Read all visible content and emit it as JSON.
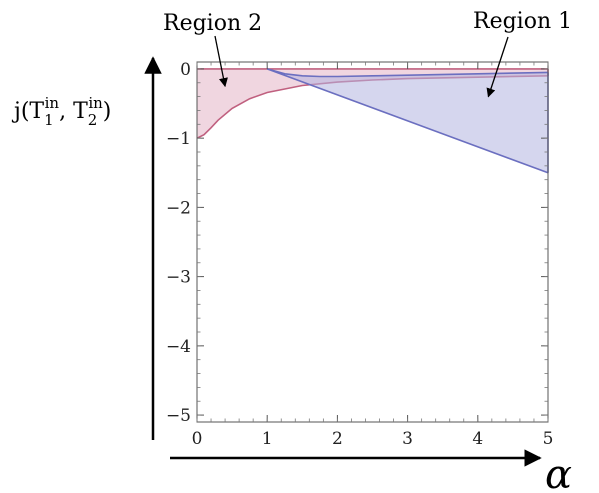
{
  "chart_data": {
    "type": "area",
    "xlabel": "α",
    "ylabel": {
      "prefix": "j(T",
      "sub1": "1",
      "sup": "in",
      "mid": ", T",
      "sub2": "2",
      "suffix": ")"
    },
    "xlim": [
      0,
      5
    ],
    "ylim": [
      -5.1,
      0.1
    ],
    "xticks": [
      "0",
      "1",
      "2",
      "3",
      "4",
      "5"
    ],
    "yticks": [
      "0",
      "−1",
      "−2",
      "−3",
      "−4",
      "−5"
    ],
    "grid": false,
    "series": [
      {
        "name": "Region 2",
        "color": "#c0607f",
        "fill": "#e4b4c6",
        "upper": {
          "x": [
            0,
            5
          ],
          "y": [
            0,
            0
          ]
        },
        "lower": {
          "x": [
            0,
            0.1,
            0.2,
            0.3,
            0.5,
            0.75,
            1,
            1.5,
            2,
            2.5,
            3,
            4,
            5
          ],
          "y": [
            -1.0,
            -0.95,
            -0.85,
            -0.74,
            -0.57,
            -0.43,
            -0.34,
            -0.24,
            -0.19,
            -0.16,
            -0.14,
            -0.12,
            -0.1
          ]
        }
      },
      {
        "name": "Region 1",
        "color": "#6b6fc0",
        "fill": "#b3b5e0",
        "upper": {
          "x": [
            1,
            1.25,
            1.5,
            1.75,
            2,
            2.5,
            3,
            4,
            5
          ],
          "y": [
            0,
            -0.07,
            -0.1,
            -0.11,
            -0.11,
            -0.1,
            -0.09,
            -0.07,
            -0.05
          ]
        },
        "lower": {
          "x": [
            1,
            5
          ],
          "y": [
            0,
            -1.5
          ]
        }
      }
    ],
    "annotations": [
      {
        "text": "Region 2",
        "points_to": {
          "x": 0.4,
          "y": -0.25
        }
      },
      {
        "text": "Region 1",
        "points_to": {
          "x": 4.15,
          "y": -0.4
        }
      }
    ]
  }
}
